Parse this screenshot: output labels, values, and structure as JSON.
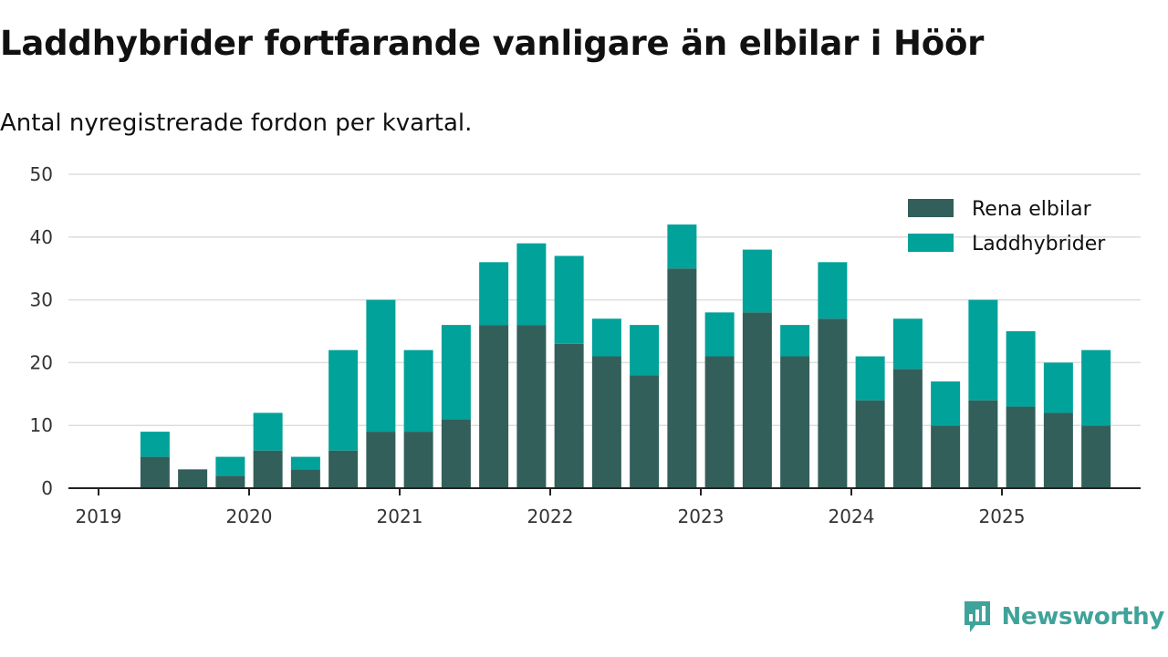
{
  "title": "Laddhybrider fortfarande vanligare än elbilar i Höör",
  "subtitle": "Antal nyregistrerade fordon per kvartal.",
  "brand": "Newsworthy",
  "colors": {
    "elbilar": "#335f5a",
    "laddhybrider": "#00a29a",
    "grid": "#dddddd",
    "axis": "#222222"
  },
  "chart_data": {
    "type": "bar",
    "stacked": true,
    "categories": [
      "2019 Q2",
      "2019 Q3",
      "2019 Q4",
      "2020 Q1",
      "2020 Q2",
      "2020 Q3",
      "2020 Q4",
      "2021 Q1",
      "2021 Q2",
      "2021 Q3",
      "2021 Q4",
      "2022 Q1",
      "2022 Q2",
      "2022 Q3",
      "2022 Q4",
      "2023 Q1",
      "2023 Q2",
      "2023 Q3",
      "2023 Q4",
      "2024 Q1",
      "2024 Q2",
      "2024 Q3",
      "2024 Q4",
      "2025 Q1",
      "2025 Q2",
      "2025 Q3"
    ],
    "series": [
      {
        "name": "Rena elbilar",
        "values": [
          5,
          3,
          2,
          6,
          3,
          6,
          9,
          9,
          11,
          26,
          26,
          23,
          21,
          18,
          35,
          21,
          28,
          21,
          27,
          14,
          19,
          10,
          14,
          13,
          12,
          10
        ]
      },
      {
        "name": "Laddhybrider",
        "values": [
          4,
          0,
          3,
          6,
          2,
          16,
          21,
          13,
          15,
          10,
          13,
          14,
          6,
          8,
          7,
          7,
          10,
          5,
          9,
          7,
          8,
          7,
          16,
          12,
          8,
          12
        ]
      }
    ],
    "x_tick_labels": [
      "2019",
      "2020",
      "2021",
      "2022",
      "2023",
      "2024",
      "2025"
    ],
    "y_ticks": [
      0,
      10,
      20,
      30,
      40,
      50
    ],
    "ylim": [
      0,
      50
    ],
    "legend_position": "top-right",
    "grid": true
  }
}
